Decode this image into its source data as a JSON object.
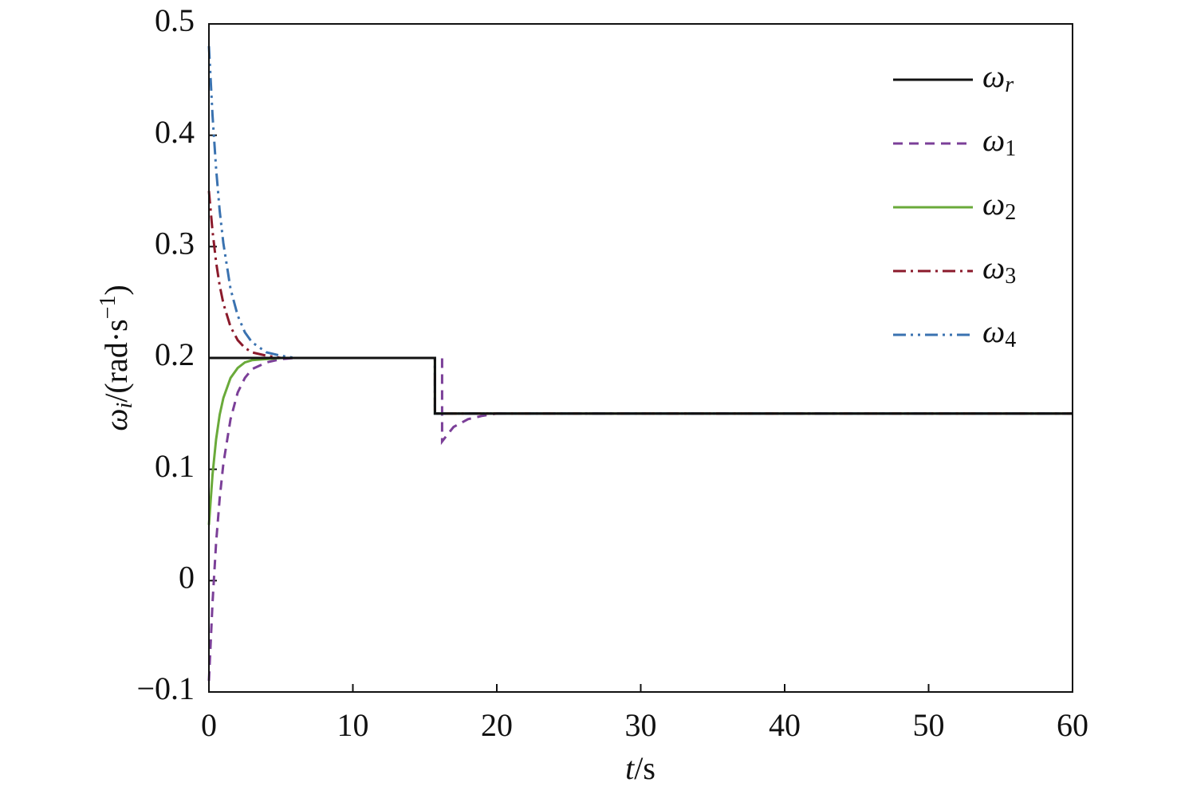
{
  "chart_data": {
    "type": "line",
    "xlabel": "t/s",
    "ylabel": "ωi/(rad·s−1)",
    "x": [
      0,
      0.25,
      0.5,
      0.75,
      1,
      1.5,
      2,
      2.5,
      3,
      4,
      5,
      6,
      8,
      10,
      15.7,
      15.7,
      16.2,
      16.2,
      16.5,
      17,
      18,
      19,
      20,
      25,
      30,
      40,
      50,
      60
    ],
    "series": [
      {
        "name": "ωr",
        "color": "#111111",
        "dash": "solid",
        "values": [
          0.2,
          0.2,
          0.2,
          0.2,
          0.2,
          0.2,
          0.2,
          0.2,
          0.2,
          0.2,
          0.2,
          0.2,
          0.2,
          0.2,
          0.2,
          0.15,
          0.15,
          0.15,
          0.15,
          0.15,
          0.15,
          0.15,
          0.15,
          0.15,
          0.15,
          0.15,
          0.15,
          0.15
        ]
      },
      {
        "name": "ω1",
        "color": "#7b3f98",
        "dash": "dashed",
        "values": [
          -0.09,
          -0.02,
          0.034,
          0.074,
          0.105,
          0.145,
          0.169,
          0.182,
          0.19,
          0.196,
          0.199,
          0.2,
          0.2,
          0.2,
          0.2,
          0.2,
          0.2,
          0.125,
          0.13,
          0.138,
          0.145,
          0.148,
          0.15,
          0.15,
          0.15,
          0.15,
          0.15,
          0.15
        ]
      },
      {
        "name": "ω2",
        "color": "#6aaa3a",
        "dash": "solid",
        "values": [
          0.05,
          0.095,
          0.127,
          0.149,
          0.164,
          0.182,
          0.191,
          0.196,
          0.198,
          0.199,
          0.2,
          0.2,
          0.2,
          0.2,
          0.2,
          0.15,
          0.15,
          0.15,
          0.15,
          0.15,
          0.15,
          0.15,
          0.15,
          0.15,
          0.15,
          0.15,
          0.15,
          0.15
        ]
      },
      {
        "name": "ω3",
        "color": "#8b1a2b",
        "dash": "dashdot",
        "values": [
          0.35,
          0.314,
          0.286,
          0.265,
          0.249,
          0.228,
          0.216,
          0.209,
          0.205,
          0.202,
          0.2,
          0.2,
          0.2,
          0.2,
          0.2,
          0.15,
          0.15,
          0.15,
          0.15,
          0.15,
          0.15,
          0.15,
          0.15,
          0.15,
          0.15,
          0.15,
          0.15,
          0.15
        ]
      },
      {
        "name": "ω4",
        "color": "#3a72b0",
        "dash": "dashdotdot",
        "values": [
          0.48,
          0.418,
          0.37,
          0.332,
          0.303,
          0.262,
          0.238,
          0.223,
          0.214,
          0.205,
          0.202,
          0.2,
          0.2,
          0.2,
          0.2,
          0.15,
          0.15,
          0.15,
          0.15,
          0.15,
          0.15,
          0.15,
          0.15,
          0.15,
          0.15,
          0.15,
          0.15,
          0.15
        ]
      }
    ],
    "xlim": [
      0,
      60
    ],
    "xticks": [
      0,
      10,
      20,
      30,
      40,
      50,
      60
    ],
    "ylim": [
      -0.1,
      0.5
    ],
    "yticks": [
      {
        "value": -0.1,
        "label": "−0.1"
      },
      0,
      0.1,
      0.2,
      0.3,
      0.4,
      0.5
    ],
    "legend": "upper right"
  }
}
